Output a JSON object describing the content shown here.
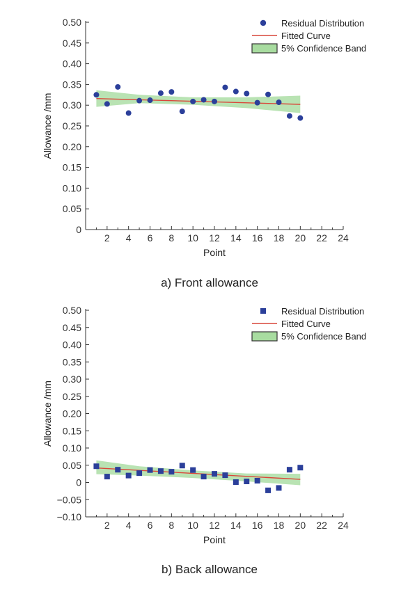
{
  "charts": [
    {
      "caption": "a) Front allowance",
      "chart_data": {
        "type": "scatter",
        "marker": "circle",
        "xlabel": "Point",
        "ylabel": "Allowance /mm",
        "xlim": [
          0,
          24
        ],
        "ylim": [
          0,
          0.5
        ],
        "x_ticks": [
          "2",
          "4",
          "6",
          "8",
          "10",
          "12",
          "14",
          "16",
          "18",
          "20",
          "22",
          "24"
        ],
        "y_ticks": [
          "0",
          "0.05",
          "0.10",
          "0.15",
          "0.20",
          "0.25",
          "0.30",
          "0.35",
          "0.40",
          "0.45",
          "0.50"
        ],
        "legend": [
          "Residual Distribution",
          "Fitted Curve",
          "5% Confidence Band"
        ],
        "legend_position": "top-right",
        "points": {
          "x": [
            1,
            2,
            3,
            4,
            5,
            6,
            7,
            8,
            9,
            10,
            11,
            12,
            13,
            14,
            15,
            16,
            17,
            18,
            19,
            20
          ],
          "y": [
            0.325,
            0.303,
            0.344,
            0.281,
            0.311,
            0.312,
            0.329,
            0.332,
            0.285,
            0.309,
            0.313,
            0.309,
            0.343,
            0.333,
            0.328,
            0.306,
            0.326,
            0.307,
            0.274,
            0.269
          ]
        },
        "fit": {
          "x": [
            1,
            20
          ],
          "y": [
            0.316,
            0.302
          ]
        },
        "band": {
          "x": [
            1,
            5,
            10,
            15,
            20
          ],
          "upper": [
            0.336,
            0.325,
            0.319,
            0.319,
            0.323
          ],
          "lower": [
            0.296,
            0.305,
            0.301,
            0.293,
            0.281
          ]
        }
      }
    },
    {
      "caption": "b) Back allowance",
      "chart_data": {
        "type": "scatter",
        "marker": "square",
        "xlabel": "Point",
        "ylabel": "Allowance /mm",
        "xlim": [
          0,
          24
        ],
        "ylim": [
          -0.1,
          0.5
        ],
        "x_ticks": [
          "2",
          "4",
          "6",
          "8",
          "10",
          "12",
          "14",
          "16",
          "18",
          "20",
          "22",
          "24"
        ],
        "y_ticks": [
          "−0.10",
          "−0.05",
          "0",
          "0.05",
          "0.10",
          "0.15",
          "0.20",
          "0.25",
          "0.30",
          "0.35",
          "0.40",
          "0.45",
          "0.50"
        ],
        "legend": [
          "Residual Distribution",
          "Fitted Curve",
          "5% Confidence Band"
        ],
        "legend_position": "top-right",
        "points": {
          "x": [
            1,
            2,
            3,
            4,
            5,
            6,
            7,
            8,
            9,
            10,
            11,
            12,
            13,
            14,
            15,
            16,
            17,
            18,
            19,
            20
          ],
          "y": [
            0.047,
            0.017,
            0.037,
            0.02,
            0.027,
            0.036,
            0.033,
            0.031,
            0.049,
            0.036,
            0.017,
            0.025,
            0.021,
            0.001,
            0.003,
            0.005,
            -0.023,
            -0.016,
            0.037,
            0.043
          ]
        },
        "fit": {
          "x": [
            1,
            20
          ],
          "y": [
            0.042,
            0.009
          ]
        },
        "band": {
          "x": [
            1,
            5,
            10,
            15,
            20
          ],
          "upper": [
            0.064,
            0.047,
            0.035,
            0.026,
            0.025
          ],
          "lower": [
            0.024,
            0.02,
            0.013,
            0.003,
            -0.008
          ]
        }
      }
    }
  ],
  "colors": {
    "point": "#2b3f9a",
    "fit": "#d9473a",
    "band": "#a8dca0",
    "band_edge": "#333333",
    "axis": "#333333"
  }
}
